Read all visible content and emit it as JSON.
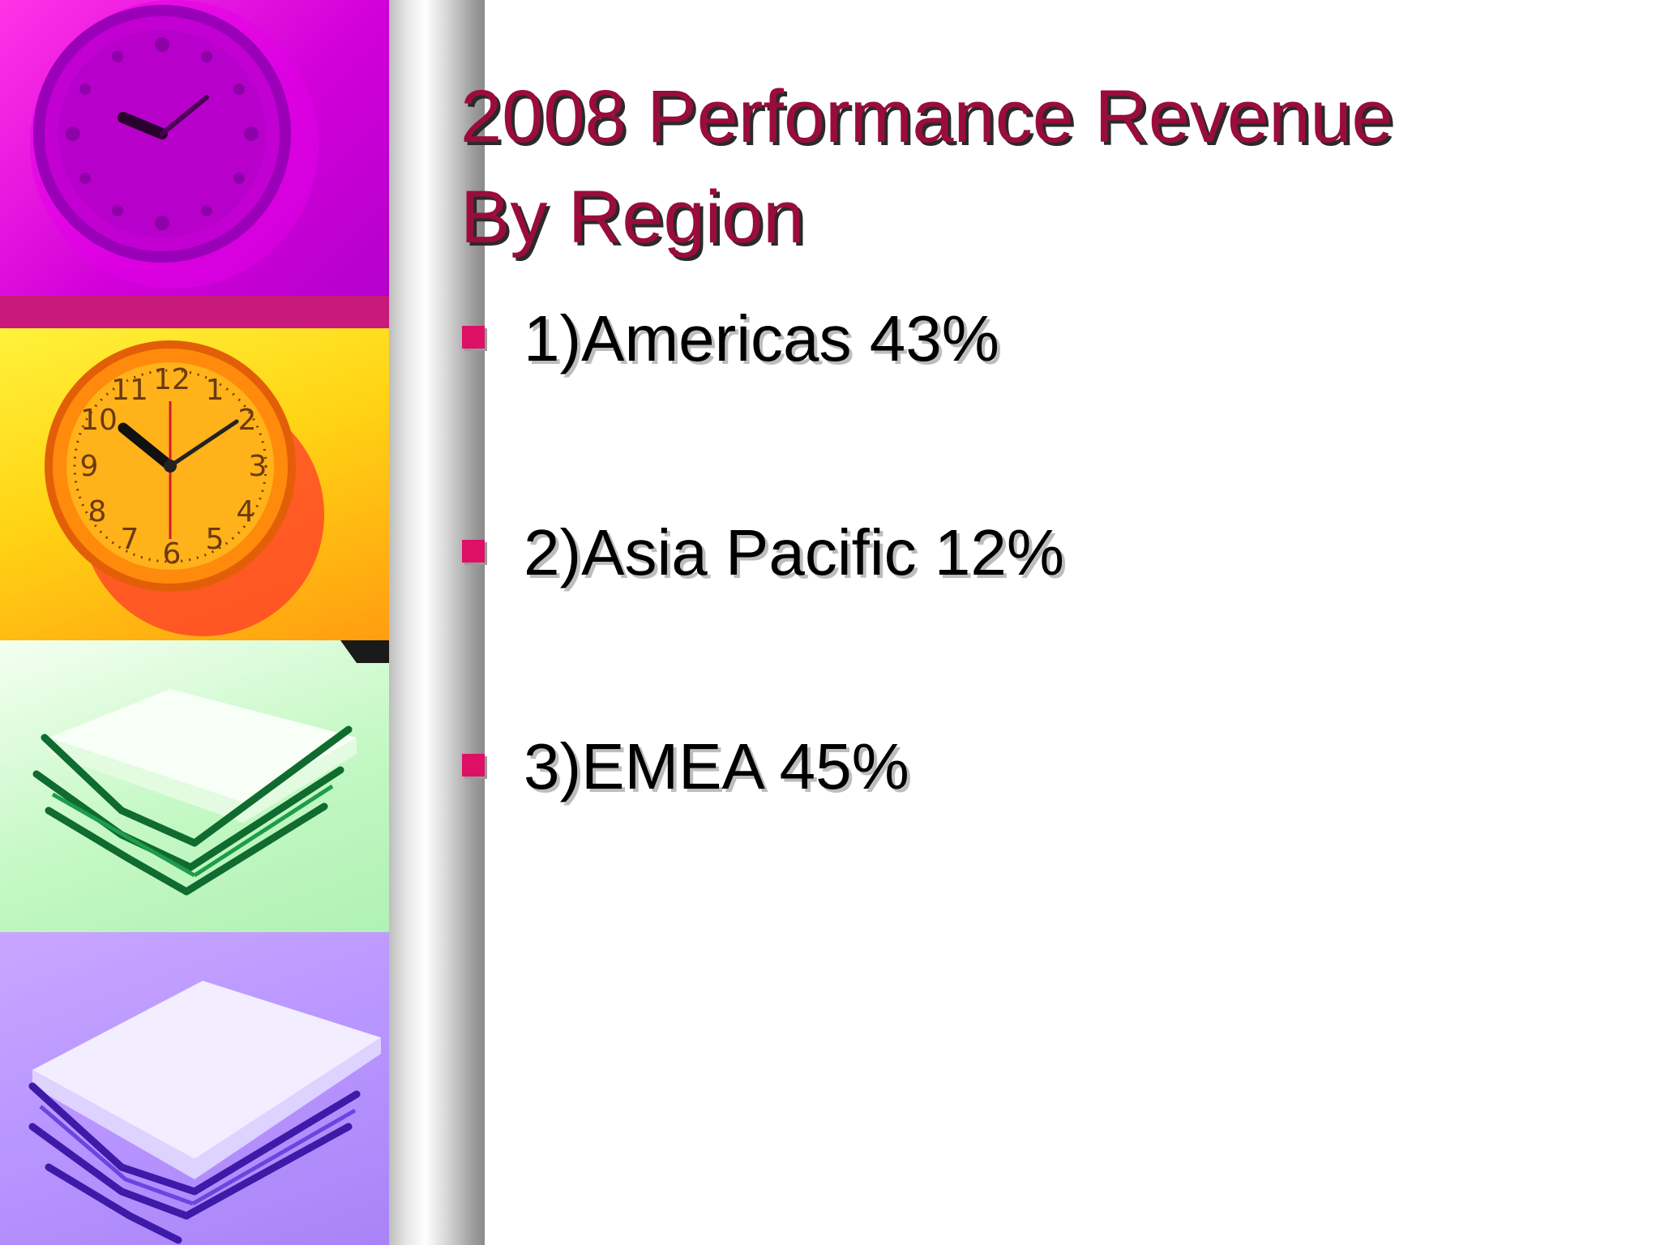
{
  "slide": {
    "title": "2008 Performance Revenue\nBy Region",
    "bullets": [
      {
        "text": "1)Americas 43%"
      },
      {
        "text": "2)Asia Pacific 12%"
      },
      {
        "text": "3)EMEA 45%"
      }
    ]
  },
  "decoration": {
    "left_strip": [
      {
        "icon": "wall-clock-icon",
        "tint": "#d100d9"
      },
      {
        "icon": "wall-clock-icon",
        "tint": "#ffd414"
      },
      {
        "icon": "paper-stack-icon",
        "tint": "#c4f8c4"
      },
      {
        "icon": "paper-stack-icon",
        "tint": "#b895ff"
      }
    ]
  },
  "colors": {
    "title": "#9b0c3e",
    "bullet_marker": "#dd1066",
    "body_text": "#000000"
  }
}
